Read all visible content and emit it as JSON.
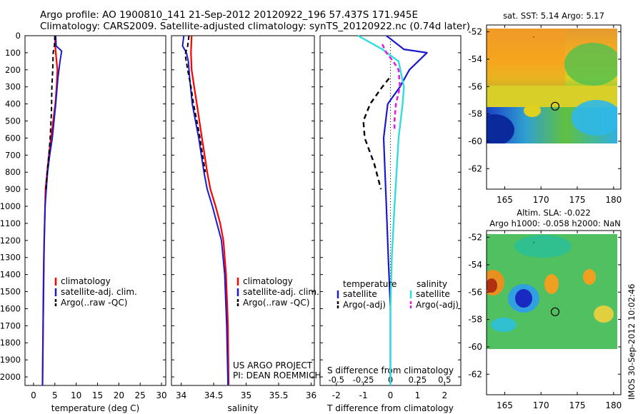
{
  "header": {
    "line1": "Argo profile: AO 1900810_141 21-Sep-2012 20120922_196 57.437S 171.945E",
    "line2": "Climatology: CARS2009. Satellite-adjusted climatology: synTS_20120922.nc (0.74d later)"
  },
  "depth_ticks": [
    "0",
    "100",
    "200",
    "300",
    "400",
    "500",
    "600",
    "700",
    "800",
    "900",
    "1000",
    "1100",
    "1200",
    "1300",
    "1400",
    "1500",
    "1600",
    "1700",
    "1800",
    "1900",
    "2000"
  ],
  "colors": {
    "climatology": "#ff0000",
    "satellite": "#1a1acc",
    "argo": "#000000",
    "sal_sat": "#33dddd",
    "sal_argo": "#e020e0"
  },
  "panel_temp": {
    "xlabel": "temperature (deg C)",
    "xticks": [
      "0",
      "5",
      "10",
      "15",
      "20",
      "25",
      "30"
    ],
    "legend": [
      "climatology",
      "satellite-adj. clim.",
      "Argo(..raw -QC)"
    ]
  },
  "panel_sal": {
    "xlabel": "salinity",
    "xticks": [
      "34",
      "34.5",
      "35",
      "35.5",
      "36"
    ],
    "legend": [
      "climatology",
      "satellite-adj. clim.",
      "Argo(..raw -QC)"
    ],
    "note1": "US ARGO PROJECT",
    "note2": "PI: DEAN ROEMMICH"
  },
  "panel_diff": {
    "xlabel": "T difference from climatology",
    "top_label": "S difference from climatology",
    "xticks_top": [
      "-0.5",
      "-0.25",
      "0",
      "0.25",
      "0.5"
    ],
    "xticks_bottom": [
      "-2",
      "-1",
      "0",
      "1",
      "2"
    ],
    "legend_t_title": "temperature",
    "legend_s_title": "salinity",
    "legend": [
      "satellite",
      "Argo(-adj)",
      "satellite",
      "Argo(-adj)"
    ]
  },
  "map_sst": {
    "title": "sat. SST: 5.14 Argo: 5.17",
    "yticks": [
      "-52",
      "-54",
      "-56",
      "-58",
      "-60",
      "-62"
    ],
    "xticks": [
      "165",
      "170",
      "175",
      "180"
    ]
  },
  "map_sla": {
    "title1": "Altim. SLA: -0.022",
    "title2": "Argo h1000: -0.058 h2000: NaN",
    "yticks": [
      "-52",
      "-54",
      "-56",
      "-58",
      "-60",
      "-62"
    ],
    "xticks": [
      "165",
      "170",
      "175",
      "180"
    ]
  },
  "watermark": "IMOS 30-Sep-2012 10:02:46",
  "chart_data": [
    {
      "type": "line",
      "xlabel": "temperature (deg C)",
      "ylabel": "",
      "xlim": [
        -2,
        31
      ],
      "ylim": [
        2050,
        0
      ],
      "series": [
        {
          "name": "climatology",
          "x": [
            5,
            5.2,
            5.6,
            5.4,
            5.1,
            4.6,
            4.1,
            3.6,
            3.2,
            2.8,
            2.6,
            2.4,
            2.3,
            2.2,
            2.1
          ],
          "y": [
            0,
            100,
            200,
            300,
            400,
            500,
            600,
            700,
            800,
            900,
            1100,
            1300,
            1500,
            1800,
            2050
          ]
        },
        {
          "name": "satellite-adj. clim.",
          "x": [
            5.2,
            5.3,
            6.6,
            6.2,
            5.7,
            5.2,
            4.8,
            4.4,
            3.8,
            3.3,
            3.0,
            2.7,
            2.5,
            2.4,
            2.3,
            2.2,
            2.1
          ],
          "y": [
            0,
            60,
            90,
            150,
            250,
            400,
            500,
            600,
            700,
            800,
            900,
            1000,
            1200,
            1400,
            1600,
            1800,
            2050
          ]
        },
        {
          "name": "Argo(..raw -QC)",
          "x": [
            5.0,
            4.9,
            4.6,
            4.5,
            4.3,
            4.2,
            3.9,
            3.6,
            3.2,
            2.9
          ],
          "y": [
            0,
            60,
            100,
            200,
            300,
            450,
            600,
            700,
            800,
            900
          ]
        }
      ]
    },
    {
      "type": "line",
      "xlabel": "salinity",
      "ylabel": "",
      "xlim": [
        33.85,
        36.05
      ],
      "ylim": [
        2050,
        0
      ],
      "series": [
        {
          "name": "climatology",
          "x": [
            34.16,
            34.15,
            34.16,
            34.2,
            34.24,
            34.28,
            34.32,
            34.36,
            34.4,
            34.45,
            34.53,
            34.6,
            34.65,
            34.69,
            34.72,
            34.73
          ],
          "y": [
            0,
            100,
            200,
            300,
            400,
            500,
            600,
            700,
            800,
            900,
            1000,
            1100,
            1200,
            1400,
            1700,
            2050
          ]
        },
        {
          "name": "satellite-adj. clim.",
          "x": [
            34.04,
            34.02,
            34.08,
            34.11,
            34.13,
            34.17,
            34.22,
            34.27,
            34.31,
            34.35,
            34.4,
            34.48,
            34.55,
            34.62,
            34.67,
            34.7,
            34.72
          ],
          "y": [
            0,
            60,
            100,
            150,
            250,
            400,
            500,
            600,
            700,
            800,
            900,
            1000,
            1100,
            1200,
            1400,
            1700,
            2050
          ]
        },
        {
          "name": "Argo(..raw -QC)",
          "x": [
            34.12,
            34.1,
            34.06,
            34.1,
            34.15,
            34.19,
            34.24,
            34.29,
            34.33,
            34.37
          ],
          "y": [
            0,
            60,
            110,
            200,
            300,
            400,
            500,
            600,
            700,
            800
          ]
        }
      ]
    },
    {
      "type": "line",
      "xlabel": "T difference from climatology",
      "ylabel": "",
      "xlim": [
        -2.6,
        2.6
      ],
      "ylim": [
        2050,
        0
      ],
      "series": [
        {
          "name": "temperature satellite",
          "x": [
            -0.15,
            0.5,
            1.35,
            0.7,
            0.35,
            -0.1,
            -0.25,
            -0.15,
            -0.08,
            0,
            0
          ],
          "y": [
            0,
            80,
            100,
            200,
            300,
            400,
            600,
            1000,
            1300,
            1600,
            2050
          ]
        },
        {
          "name": "temperature Argo(-adj)",
          "x": [
            -0.05,
            -0.3,
            -0.75,
            -1.0,
            -0.95,
            -0.6,
            -0.35
          ],
          "y": [
            250,
            300,
            400,
            500,
            600,
            750,
            900
          ]
        },
        {
          "name": "salinity satellite",
          "x": [
            -1.2,
            -0.75,
            -0.3,
            0.3,
            0.5,
            0.45,
            0.3,
            0.15,
            0.05,
            0,
            0
          ],
          "y": [
            0,
            40,
            80,
            150,
            300,
            400,
            600,
            1000,
            1300,
            1600,
            2050
          ]
        },
        {
          "name": "salinity Argo(-adj)",
          "x": [
            -0.3,
            -0.15,
            0.1,
            0.3,
            0.35,
            0.2,
            0.15,
            0.15
          ],
          "y": [
            50,
            100,
            150,
            200,
            300,
            400,
            500,
            550
          ]
        }
      ]
    },
    {
      "type": "heatmap",
      "title": "sat. SST: 5.14 Argo: 5.17",
      "xlim": [
        162.5,
        181
      ],
      "ylim": [
        -63.5,
        -51.5
      ],
      "marker": {
        "lon": 171.945,
        "lat": -57.437
      }
    },
    {
      "type": "heatmap",
      "title": "Altim. SLA: -0.022",
      "xlim": [
        162.5,
        181
      ],
      "ylim": [
        -63.5,
        -51.5
      ],
      "marker": {
        "lon": 171.945,
        "lat": -57.437
      }
    }
  ]
}
